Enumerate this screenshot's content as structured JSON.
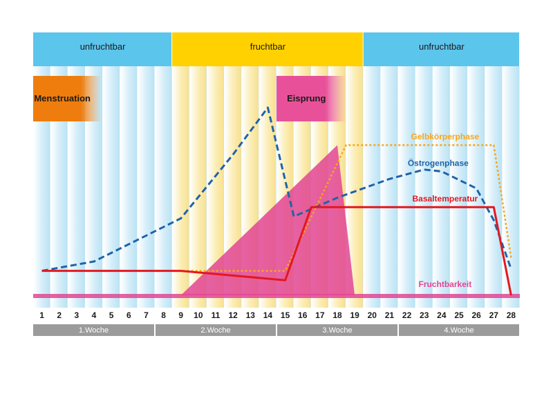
{
  "chart_data": {
    "type": "line",
    "title": "",
    "xlabel": "",
    "ylabel": "",
    "x_range": [
      1,
      28
    ],
    "days": [
      "1",
      "2",
      "3",
      "4",
      "5",
      "6",
      "7",
      "8",
      "9",
      "10",
      "11",
      "12",
      "13",
      "14",
      "15",
      "16",
      "17",
      "18",
      "19",
      "20",
      "21",
      "22",
      "23",
      "24",
      "25",
      "26",
      "27",
      "28"
    ],
    "weeks": [
      {
        "label": "1.Woche",
        "from": 1,
        "to": 7
      },
      {
        "label": "2.Woche",
        "from": 8,
        "to": 14
      },
      {
        "label": "3.Woche",
        "from": 15,
        "to": 21
      },
      {
        "label": "4.Woche",
        "from": 22,
        "to": 28
      }
    ],
    "phases": [
      {
        "label": "unfruchtbar",
        "from": 1,
        "to": 8,
        "color": "#5cc5ec"
      },
      {
        "label": "fruchtbar",
        "from": 9,
        "to": 19,
        "color": "#ffd100"
      },
      {
        "label": "unfruchtbar",
        "from": 20,
        "to": 28,
        "color": "#5cc5ec"
      }
    ],
    "events": [
      {
        "label": "Menstruation",
        "from": 1,
        "to": 5,
        "color": "#ee7d0d"
      },
      {
        "label": "Eisprung",
        "from": 15,
        "to": 19,
        "color": "#e8519a"
      }
    ],
    "series": [
      {
        "name": "Gelbkörperphase",
        "color": "#f7a61b",
        "style": "dotted",
        "x": [
          1,
          15,
          18.5,
          27,
          28
        ],
        "y": [
          0.13,
          0.13,
          0.8,
          0.8,
          0.2
        ]
      },
      {
        "name": "Östrogenphase",
        "color": "#1f63a8",
        "style": "dashed",
        "x": [
          1,
          4,
          9,
          12,
          14,
          15.5,
          18,
          21,
          23,
          24,
          26,
          27,
          28
        ],
        "y": [
          0.13,
          0.18,
          0.41,
          0.75,
          1.0,
          0.42,
          0.52,
          0.62,
          0.67,
          0.66,
          0.57,
          0.4,
          0.14
        ]
      },
      {
        "name": "Basaltemperatur",
        "color": "#e3171f",
        "style": "solid",
        "x": [
          1,
          9,
          15,
          16.5,
          27,
          28
        ],
        "y": [
          0.13,
          0.13,
          0.08,
          0.47,
          0.47,
          0.0
        ]
      },
      {
        "name": "Fruchtbarkeit",
        "color": "#e24594",
        "style": "area",
        "x": [
          1,
          9,
          18,
          19,
          28
        ],
        "y": [
          0.0,
          0.0,
          0.8,
          0.0,
          0.0
        ]
      }
    ],
    "colors": {
      "week_bar": "#9b9b9b",
      "column_stripe": "#cdeaf7",
      "fertile_glow": "#fde9a3"
    }
  }
}
